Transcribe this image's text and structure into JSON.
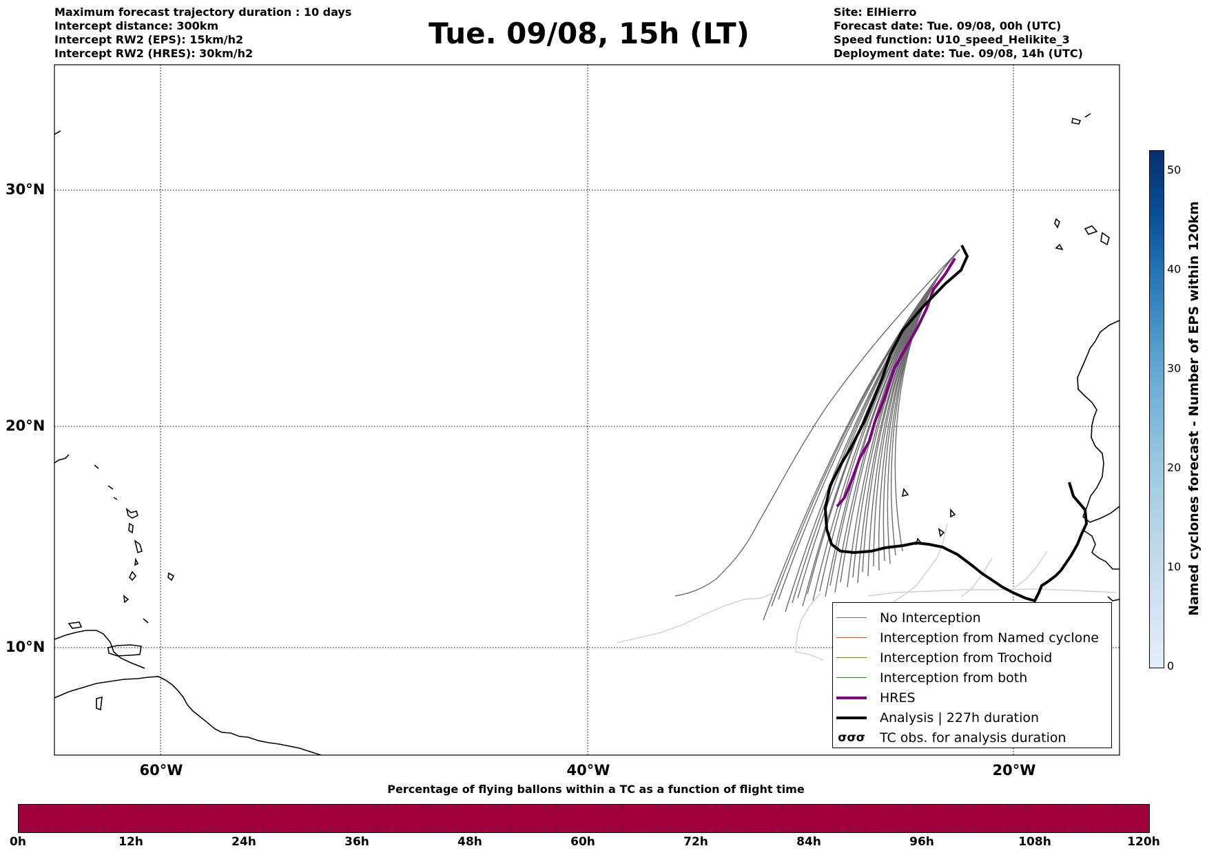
{
  "header_left": [
    "Maximum forecast trajectory duration : 10 days",
    "Intercept distance: 300km",
    "Intercept RW2 (EPS):  15km/h2",
    "Intercept RW2 (HRES): 30km/h2"
  ],
  "header_right": [
    "Site: ElHierro",
    "Forecast date: Tue. 09/08, 00h (UTC)",
    "Speed function: U10_speed_Helikite_3",
    "Deployment date: Tue. 09/08, 14h (UTC)"
  ],
  "title": "Tue. 09/08, 15h (LT)",
  "map": {
    "lat_labels": [
      "30°N",
      "20°N",
      "10°N"
    ],
    "lon_labels": [
      "60°W",
      "40°W",
      "20°W"
    ],
    "lat_range": [
      5,
      35.5
    ],
    "lon_range": [
      -65,
      -15
    ],
    "gridlines": true
  },
  "legend": {
    "items": [
      {
        "label": "No Interception",
        "color": "#707070"
      },
      {
        "label": "Interception from Named cyclone",
        "color": "#ff4500"
      },
      {
        "label": "Interception from Trochoid",
        "color": "#808000"
      },
      {
        "label": "Interception from both",
        "color": "#228b22"
      },
      {
        "label": "HRES",
        "color": "#800080"
      },
      {
        "label": "Analysis | 227h duration",
        "color": "#000000"
      },
      {
        "label": "TC obs. for analysis duration",
        "color": "#000000",
        "icon": "cyclone-symbol-icon"
      }
    ],
    "cyclone_symbol": "σσσ"
  },
  "colorbar_right": {
    "label": "Named cyclones forecast - Number of EPS within 120km",
    "ticks": [
      "0",
      "10",
      "20",
      "30",
      "40",
      "50"
    ],
    "range": [
      0,
      52
    ],
    "color_low": "#e3eef9",
    "color_high": "#08306b"
  },
  "colorbar_bottom": {
    "title": "Percentage of flying ballons within a TC as a function of flight time",
    "ticks": [
      "0h",
      "12h",
      "24h",
      "36h",
      "48h",
      "60h",
      "72h",
      "84h",
      "96h",
      "108h",
      "120h"
    ],
    "fill_color": "#a0003b"
  }
}
